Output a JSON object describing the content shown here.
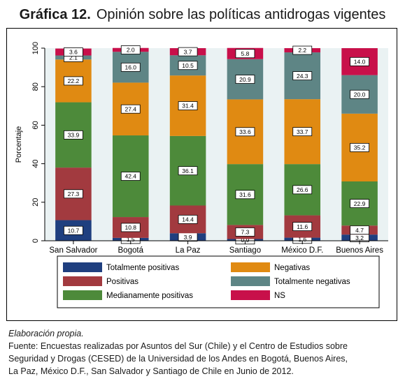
{
  "figure": {
    "number": "Gráfica 12.",
    "title": "Opinión sobre las políticas antidrogas vigentes"
  },
  "colors": {
    "Totalmente positivas": "#1f3f7f",
    "Positivas": "#a23a3f",
    "Medianamente positivas": "#4d8a3a",
    "Negativas": "#e08a12",
    "Totalmente negativas": "#5e8585",
    "NS": "#c8104a",
    "plot_background": "#eaf2f3"
  },
  "chart_data": {
    "type": "bar",
    "stacked": true,
    "categories": [
      "San Salvador",
      "Bogotá",
      "La Paz",
      "Santiago",
      "México D.F.",
      "Buenos Aires"
    ],
    "ylabel": "Porcentaje",
    "xlabel": "",
    "ylim": [
      0,
      100
    ],
    "yticks": [
      0,
      20,
      40,
      60,
      80,
      100
    ],
    "grid": false,
    "legend_position": "bottom",
    "series": [
      {
        "name": "Totalmente positivas",
        "values": [
          10.7,
          1.5,
          3.9,
          0.9,
          1.6,
          3.2
        ]
      },
      {
        "name": "Positivas",
        "values": [
          27.3,
          10.8,
          14.4,
          7.3,
          11.6,
          4.7
        ]
      },
      {
        "name": "Medianamente positivas",
        "values": [
          33.9,
          42.4,
          36.1,
          31.6,
          26.6,
          22.9
        ]
      },
      {
        "name": "Negativas",
        "values": [
          22.2,
          27.4,
          31.4,
          33.6,
          33.7,
          35.2
        ]
      },
      {
        "name": "Totalmente negativas",
        "values": [
          2.1,
          16.0,
          10.5,
          20.9,
          24.3,
          20.0
        ]
      },
      {
        "name": "NS",
        "values": [
          3.6,
          2.0,
          3.7,
          5.8,
          2.2,
          14.0
        ]
      }
    ],
    "value_labels": [
      [
        "10.7",
        "27.3",
        "33.9",
        "22.2",
        "2.1",
        "3.6"
      ],
      [
        "1.5",
        "10.8",
        "42.4",
        "27.4",
        "16.0",
        "2.0"
      ],
      [
        "3.9",
        "14.4",
        "36.1",
        "31.4",
        "10.5",
        "3.7"
      ],
      [
        "0.9",
        "7.3",
        "31.6",
        "33.6",
        "20.9",
        "5.8"
      ],
      [
        "1.6",
        "11.6",
        "26.6",
        "33.7",
        "24.3",
        "2.2"
      ],
      [
        "3.2",
        "4.7",
        "22.9",
        "35.2",
        "20.0",
        "14.0"
      ]
    ],
    "legend_order": [
      "Totalmente positivas",
      "Negativas",
      "Positivas",
      "Totalmente negativas",
      "Medianamente positivas",
      "NS"
    ]
  },
  "footer": {
    "credit": "Elaboración propia.",
    "source_lines": [
      "Fuente: Encuestas realizadas por Asuntos del Sur (Chile) y el Centro de Estudios sobre",
      "Seguridad y Drogas (CESED) de la Universidad de los Andes en Bogotá, Buenos Aires,",
      "La Paz, México D.F., San Salvador y Santiago de Chile en Junio de 2012."
    ]
  }
}
